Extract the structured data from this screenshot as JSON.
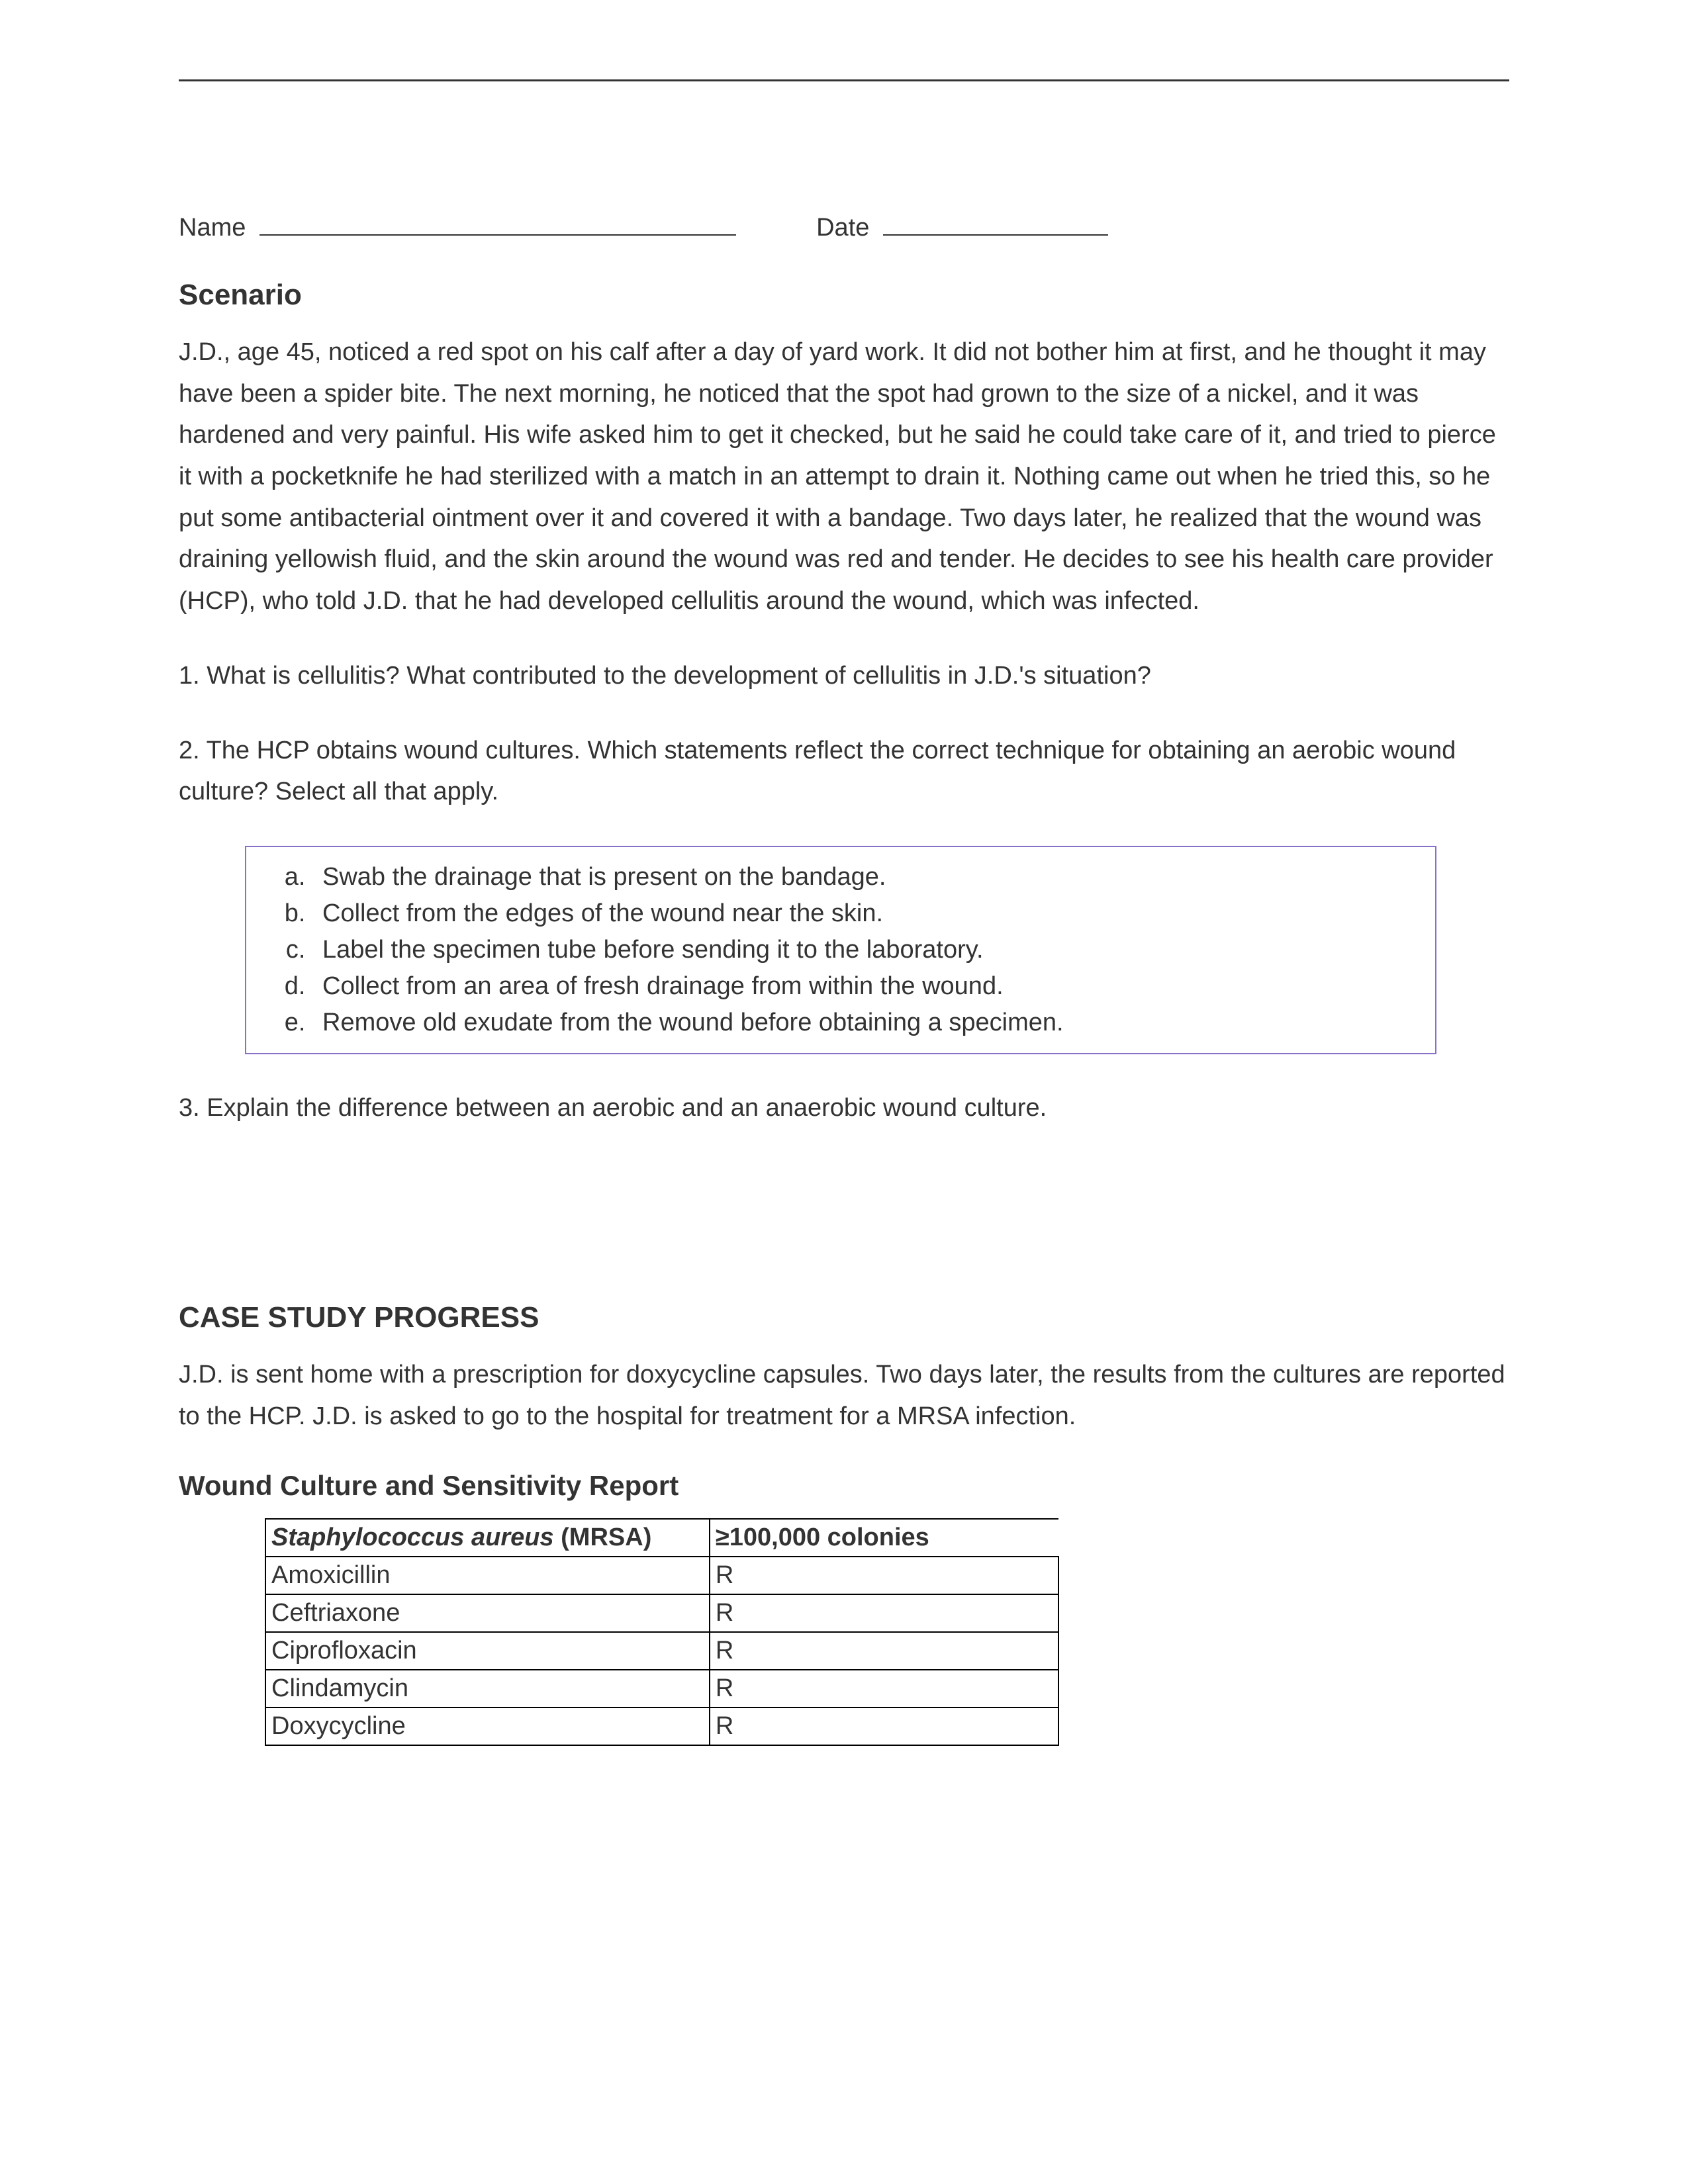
{
  "nameDate": {
    "nameLabel": "Name",
    "dateLabel": "Date"
  },
  "scenario": {
    "heading": "Scenario",
    "body": "J.D., age 45, noticed a red spot on his calf after a day of yard work. It did not bother him at first, and he thought it may have been a spider bite. The next morning, he noticed that the spot had grown to the size of a nickel, and it was hardened and very painful. His wife asked him to get it checked, but he said he could take care of it, and tried to pierce it with a pocketknife he had sterilized with a match in an attempt to drain it. Nothing came out when he tried this, so he put some antibacterial ointment over it and covered it with a bandage. Two days later, he realized that the wound was draining yellowish fluid, and the skin around the wound was red and tender. He decides to see his health care provider (HCP), who told J.D. that he had developed cellulitis around the wound, which was infected."
  },
  "questions": {
    "q1": "1. What is cellulitis? What contributed to the development of cellulitis in J.D.'s situation?",
    "q2": "2. The HCP obtains wound cultures. Which statements reflect the correct technique for obtaining an aerobic wound culture? Select all that apply.",
    "q3": "3. Explain the difference between an aerobic and an anaerobic wound culture."
  },
  "options": {
    "a": "Swab the drainage that is present on the bandage.",
    "b": "Collect from the edges of the wound near the skin.",
    "c": "Label the specimen tube before sending it to the laboratory.",
    "d": "Collect from an area of fresh drainage from within the wound.",
    "e": "Remove old exudate from the wound before obtaining a specimen."
  },
  "progress": {
    "heading": "CASE STUDY PROGRESS",
    "body": "J.D. is sent home with a prescription for doxycycline capsules. Two days later, the results from the cultures are reported to the HCP. J.D. is asked to go to the hospital for treatment for a MRSA infection."
  },
  "report": {
    "heading": "Wound Culture and Sensitivity Report",
    "header": {
      "organismItalic": "Staphylococcus aureus",
      "organismSuffix": " (MRSA)",
      "colonies": "≥100,000 colonies"
    },
    "rows": [
      {
        "drug": "Amoxicillin",
        "result": "R"
      },
      {
        "drug": "Ceftriaxone",
        "result": "R"
      },
      {
        "drug": "Ciprofloxacin",
        "result": "R"
      },
      {
        "drug": "Clindamycin",
        "result": "R"
      },
      {
        "drug": "Doxycycline",
        "result": "R"
      }
    ]
  },
  "style": {
    "pageWidth": 2550,
    "pageHeight": 3300,
    "background": "#ffffff",
    "textColor": "#333333",
    "ruleColor": "#333333",
    "optionBoxBorder": "#8a6fc7",
    "tableBorder": "#000000",
    "bodyFontSize": 38,
    "headingFontSize": 44,
    "subheadFontSize": 42,
    "lineHeight": 1.65,
    "fontFamily": "Arial"
  }
}
